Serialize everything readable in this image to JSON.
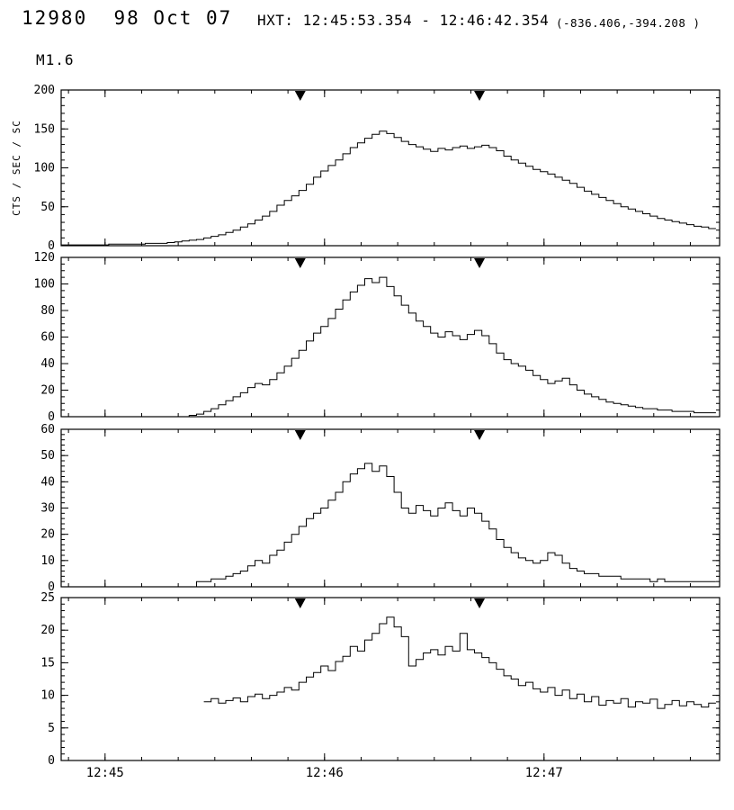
{
  "header": {
    "title": "12980  98 Oct 07",
    "hxt_label": "HXT: 12:45:53.354 - 12:46:42.354",
    "pointing": "(-836.406,-394.208 )",
    "flare_class": "M1.6"
  },
  "colors": {
    "foreground": "#000000",
    "background": "#ffffff"
  },
  "chart_data": {
    "type": "line",
    "subtype": "step-histogram-lightcurve",
    "title": "HXT: 12:45:53.354 - 12:46:42.354",
    "ylabel": "CTS / SEC / SC",
    "x_range_seconds": [
      0,
      180
    ],
    "x_major_ticks": [
      {
        "t": 12,
        "label": "12:45"
      },
      {
        "t": 72,
        "label": "12:46"
      },
      {
        "t": 132,
        "label": "12:47"
      }
    ],
    "x_minor_step": 10,
    "x_minor_offset": 2,
    "bin_seconds": 2,
    "event_markers_t": [
      65.354,
      114.354
    ],
    "panels": [
      {
        "ylim": [
          0,
          200
        ],
        "yticks": [
          0,
          50,
          100,
          150,
          200
        ],
        "y_minor_step": 10,
        "values": [
          1,
          1,
          1,
          1,
          1,
          1,
          1,
          2,
          2,
          2,
          2,
          2,
          3,
          3,
          3,
          4,
          5,
          6,
          7,
          8,
          10,
          12,
          14,
          17,
          20,
          24,
          28,
          33,
          38,
          44,
          52,
          58,
          64,
          71,
          79,
          88,
          96,
          103,
          110,
          118,
          126,
          132,
          138,
          143,
          147,
          144,
          139,
          134,
          130,
          127,
          124,
          121,
          125,
          123,
          126,
          128,
          125,
          127,
          129,
          126,
          122,
          115,
          110,
          106,
          102,
          98,
          95,
          92,
          88,
          84,
          80,
          75,
          70,
          66,
          62,
          58,
          54,
          50,
          47,
          44,
          41,
          38,
          35,
          33,
          31,
          29,
          27,
          25,
          24,
          22
        ]
      },
      {
        "ylim": [
          0,
          120
        ],
        "yticks": [
          0,
          20,
          40,
          60,
          80,
          100,
          120
        ],
        "y_minor_step": 5,
        "values": [
          0,
          0,
          0,
          0,
          0,
          0,
          0,
          0,
          0,
          0,
          0,
          0,
          0,
          0,
          0,
          0,
          0,
          0,
          1,
          2,
          4,
          6,
          9,
          12,
          15,
          18,
          22,
          25,
          24,
          28,
          33,
          38,
          44,
          50,
          57,
          63,
          68,
          74,
          81,
          88,
          94,
          99,
          104,
          101,
          105,
          98,
          91,
          84,
          78,
          72,
          68,
          63,
          60,
          64,
          61,
          58,
          62,
          65,
          61,
          55,
          48,
          43,
          40,
          38,
          35,
          31,
          28,
          25,
          27,
          29,
          24,
          20,
          17,
          15,
          13,
          11,
          10,
          9,
          8,
          7,
          6,
          6,
          5,
          5,
          4,
          4,
          4,
          3,
          3,
          3
        ]
      },
      {
        "ylim": [
          0,
          60
        ],
        "yticks": [
          0,
          10,
          20,
          30,
          40,
          50,
          60
        ],
        "y_minor_step": 2,
        "values": [
          0,
          0,
          0,
          0,
          0,
          0,
          0,
          0,
          0,
          0,
          0,
          0,
          0,
          0,
          0,
          0,
          0,
          0,
          0,
          2,
          2,
          3,
          3,
          4,
          5,
          6,
          8,
          10,
          9,
          12,
          14,
          17,
          20,
          23,
          26,
          28,
          30,
          33,
          36,
          40,
          43,
          45,
          47,
          44,
          46,
          42,
          36,
          30,
          28,
          31,
          29,
          27,
          30,
          32,
          29,
          27,
          30,
          28,
          25,
          22,
          18,
          15,
          13,
          11,
          10,
          9,
          10,
          13,
          12,
          9,
          7,
          6,
          5,
          5,
          4,
          4,
          4,
          3,
          3,
          3,
          3,
          2,
          3,
          2,
          2,
          2,
          2,
          2,
          2,
          2
        ]
      },
      {
        "ylim": [
          0,
          25
        ],
        "yticks": [
          0,
          5,
          10,
          15,
          20,
          25
        ],
        "y_minor_step": 1,
        "values": [
          null,
          null,
          null,
          null,
          null,
          null,
          null,
          null,
          null,
          null,
          null,
          null,
          null,
          null,
          null,
          null,
          null,
          null,
          null,
          null,
          9,
          9.5,
          8.8,
          9.2,
          9.6,
          9,
          9.8,
          10.2,
          9.5,
          10,
          10.5,
          11.2,
          10.8,
          12,
          12.8,
          13.5,
          14.5,
          13.8,
          15.2,
          16,
          17.5,
          16.8,
          18.5,
          19.5,
          21,
          22,
          20.5,
          19,
          14.5,
          15.5,
          16.5,
          17,
          16.2,
          17.5,
          16.8,
          19.5,
          17,
          16.5,
          15.8,
          15,
          14,
          13,
          12.5,
          11.5,
          12,
          11,
          10.5,
          11.2,
          10,
          10.8,
          9.5,
          10.2,
          9,
          9.8,
          8.5,
          9.2,
          8.8,
          9.5,
          8.2,
          9,
          8.8,
          9.4,
          8,
          8.6,
          9.2,
          8.4,
          9,
          8.6,
          8.2,
          8.8
        ]
      }
    ]
  }
}
